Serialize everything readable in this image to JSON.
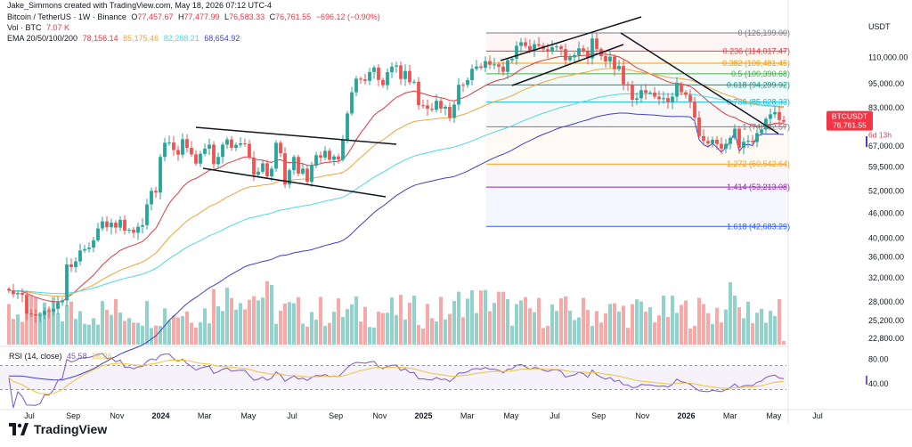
{
  "header": {
    "attribution": "Jake_Simmons created with TradingView.com, May 18, 2026 07:12 UTC-4",
    "symbol": "Bitcoin / TetherUS · 1W · Binance",
    "ohlc": {
      "o_label": "O",
      "o": "77,457.67",
      "h_label": "H",
      "h": "77,477.99",
      "l_label": "L",
      "l": "76,583.33",
      "c_label": "C",
      "c": "76,761.55",
      "chg": "−696.12 (−0.90%)"
    },
    "vol_label": "Vol · BTC",
    "vol_value": "7.07 K",
    "ema_label": "EMA 20/50/100/200",
    "ema_values": [
      "78,156.14",
      "85,175.46",
      "82,288.21",
      "68,654.92"
    ],
    "ema_colors": [
      "#e0383e",
      "#f0a53a",
      "#4dd8e8",
      "#3f3fc8"
    ]
  },
  "price_axis": {
    "currency": "USDT",
    "ticks": [
      "110,000.00",
      "95,000.00",
      "83,000.00",
      "67,000.00",
      "59,500.00",
      "52,000.00",
      "46,000.00",
      "40,000.00",
      "36,000.00",
      "32,000.00",
      "28,000.00",
      "25,200.00",
      "22,800.00"
    ],
    "last_price": "76,761.55",
    "symbol_tag": "BTCUSDT",
    "countdown": "6d 13h"
  },
  "fib": [
    {
      "ratio": "0",
      "price": "(126,199.00)",
      "color": "#787b86"
    },
    {
      "ratio": "0.236",
      "price": "(114,017.47)",
      "color": "#f23645"
    },
    {
      "ratio": "0.382",
      "price": "(106,481.45)",
      "color": "#ff9800"
    },
    {
      "ratio": "0.5",
      "price": "(100,390.68)",
      "color": "#4caf50"
    },
    {
      "ratio": "0.618",
      "price": "(94,299.92)",
      "color": "#089981"
    },
    {
      "ratio": "0.786",
      "price": "(85,628.33)",
      "color": "#00bcd4"
    },
    {
      "ratio": "1",
      "price": "(74,582.57)",
      "color": "#787b86"
    },
    {
      "ratio": "1.272",
      "price": "(60,542.64)",
      "color": "#f7a21b"
    },
    {
      "ratio": "1.414",
      "price": "(53,213.08)",
      "color": "#9c27b0"
    },
    {
      "ratio": "1.618",
      "price": "(42,683.29)",
      "color": "#2962ff"
    }
  ],
  "rsi": {
    "label": "RSI (14, close)",
    "value": "45.58",
    "ma_value": "38.36",
    "ticks": [
      "80.00",
      "40.00"
    ]
  },
  "time_axis": [
    "Jul",
    "Sep",
    "Nov",
    "2024",
    "Mar",
    "May",
    "Jul",
    "Sep",
    "Nov",
    "2025",
    "Mar",
    "May",
    "Jul",
    "Sep",
    "Nov",
    "2026",
    "Mar",
    "May",
    "Jul"
  ],
  "brand": "TradingView",
  "chart_data": {
    "type": "candlestick",
    "title": "Bitcoin / TetherUS · 1W · Binance",
    "interval": "weekly",
    "y_scale": "log",
    "ylim": [
      22000,
      135000
    ],
    "approx_weekly_close": [
      29800,
      29200,
      29400,
      29100,
      26200,
      26100,
      25900,
      26000,
      26600,
      26500,
      26900,
      27900,
      28200,
      34500,
      34000,
      35100,
      37300,
      37600,
      37900,
      39500,
      42200,
      43900,
      42500,
      43600,
      42400,
      44300,
      41700,
      41900,
      41200,
      42600,
      43000,
      48300,
      52100,
      51600,
      63000,
      68200,
      68300,
      65500,
      63800,
      69600,
      66300,
      63900,
      60700,
      64100,
      66000,
      67500,
      60500,
      63000,
      67500,
      69500,
      66300,
      67400,
      68000,
      67800,
      62800,
      57000,
      58000,
      60800,
      56500,
      59000,
      68200,
      64300,
      54000,
      58500,
      63000,
      57400,
      59000,
      54800,
      60000,
      63600,
      62800,
      65200,
      62000,
      63200,
      62100,
      69300,
      80400,
      90500,
      97700,
      97300,
      96500,
      101400,
      104000,
      97000,
      94200,
      101300,
      104500,
      105200,
      97500,
      102000,
      95700,
      96000,
      84200,
      84100,
      82500,
      82000,
      86300,
      82600,
      83400,
      78400,
      84500,
      94400,
      94300,
      96900,
      103200,
      104600,
      103800,
      107800,
      105600,
      105800,
      104500,
      101500,
      108300,
      109200,
      117400,
      119800,
      117300,
      114000,
      118500,
      117500,
      115200,
      113800,
      116500,
      117000,
      115300,
      108300,
      110100,
      111500,
      115800,
      114000,
      109500,
      122300,
      115300,
      110900,
      107600,
      110500,
      103000,
      104900,
      94700,
      94400,
      86800,
      87500,
      91600,
      90200,
      90300,
      88300,
      87100,
      87600,
      85700,
      88300,
      95000,
      90500,
      89200,
      86000,
      78500,
      70800,
      68900,
      68000,
      69400,
      67800,
      66000,
      67800,
      70100,
      73800,
      66300,
      68600,
      69000,
      68500,
      72000,
      73500,
      78000,
      80000,
      81000,
      77460,
      76760
    ],
    "fib_retracement": {
      "high": 126199.0,
      "low_reference": 74582.57,
      "levels": [
        0,
        0.236,
        0.382,
        0.5,
        0.618,
        0.786,
        1,
        1.272,
        1.414,
        1.618
      ]
    },
    "ema": {
      "20": 78156.14,
      "50": 85175.46,
      "100": 82288.21,
      "200": 68654.92
    },
    "rsi": {
      "period": 14,
      "value": 45.58,
      "ma": 38.36,
      "bands": [
        30,
        70
      ]
    },
    "volume_unit": "BTC",
    "last_volume": "7.07 K"
  }
}
